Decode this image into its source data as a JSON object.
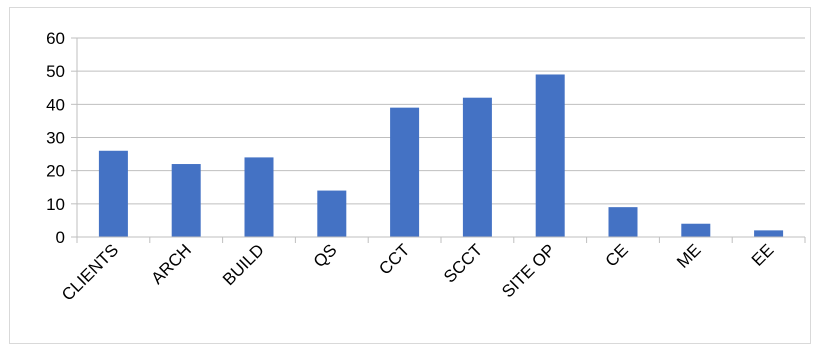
{
  "chart_data": {
    "type": "bar",
    "categories": [
      "CLIENTS",
      "ARCH",
      "BUILD",
      "QS",
      "CCT",
      "SCCT",
      "SITE OP",
      "CE",
      "ME",
      "EE"
    ],
    "values": [
      26,
      22,
      24,
      14,
      39,
      42,
      49,
      9,
      4,
      2
    ],
    "ylim": [
      0,
      60
    ],
    "yticks": [
      0,
      10,
      20,
      30,
      40,
      50,
      60
    ],
    "grid": true,
    "legend": "none",
    "bar_color": "#4472c4",
    "grid_color": "#bfbfbf",
    "axis_color": "#bfbfbf"
  }
}
